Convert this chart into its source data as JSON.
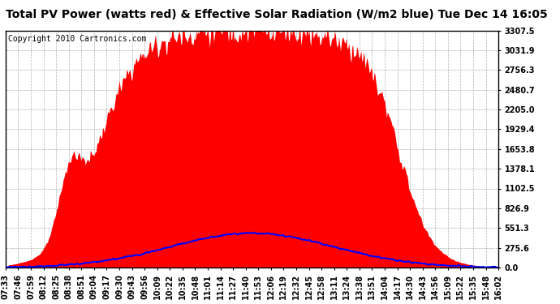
{
  "title": "Total PV Power (watts red) & Effective Solar Radiation (W/m2 blue) Tue Dec 14 16:05",
  "copyright": "Copyright 2010 Cartronics.com",
  "y_max": 3307.5,
  "y_ticks": [
    0.0,
    275.6,
    551.3,
    826.9,
    1102.5,
    1378.1,
    1653.8,
    1929.4,
    2205.0,
    2480.7,
    2756.3,
    3031.9,
    3307.5
  ],
  "y_tick_labels": [
    "0.0",
    "275.6",
    "551.3",
    "826.9",
    "1102.5",
    "1378.1",
    "1653.8",
    "1929.4",
    "2205.0",
    "2480.7",
    "2756.3",
    "3031.9",
    "3307.5"
  ],
  "x_labels": [
    "07:33",
    "07:46",
    "07:59",
    "08:12",
    "08:25",
    "08:38",
    "08:51",
    "09:04",
    "09:17",
    "09:30",
    "09:43",
    "09:56",
    "10:09",
    "10:22",
    "10:35",
    "10:48",
    "11:01",
    "11:14",
    "11:27",
    "11:40",
    "11:53",
    "12:06",
    "12:19",
    "12:32",
    "12:45",
    "12:58",
    "13:11",
    "13:24",
    "13:38",
    "13:51",
    "14:04",
    "14:17",
    "14:30",
    "14:43",
    "14:56",
    "15:09",
    "15:22",
    "15:35",
    "15:48",
    "16:02"
  ],
  "background_color": "#ffffff",
  "plot_bg_color": "#ffffff",
  "grid_color": "#b0b0b0",
  "red_color": "#ff0000",
  "blue_color": "#0000ff",
  "title_fontsize": 10,
  "tick_fontsize": 7,
  "copyright_fontsize": 7,
  "pv_peak": 3307.5,
  "solar_peak": 480.0
}
